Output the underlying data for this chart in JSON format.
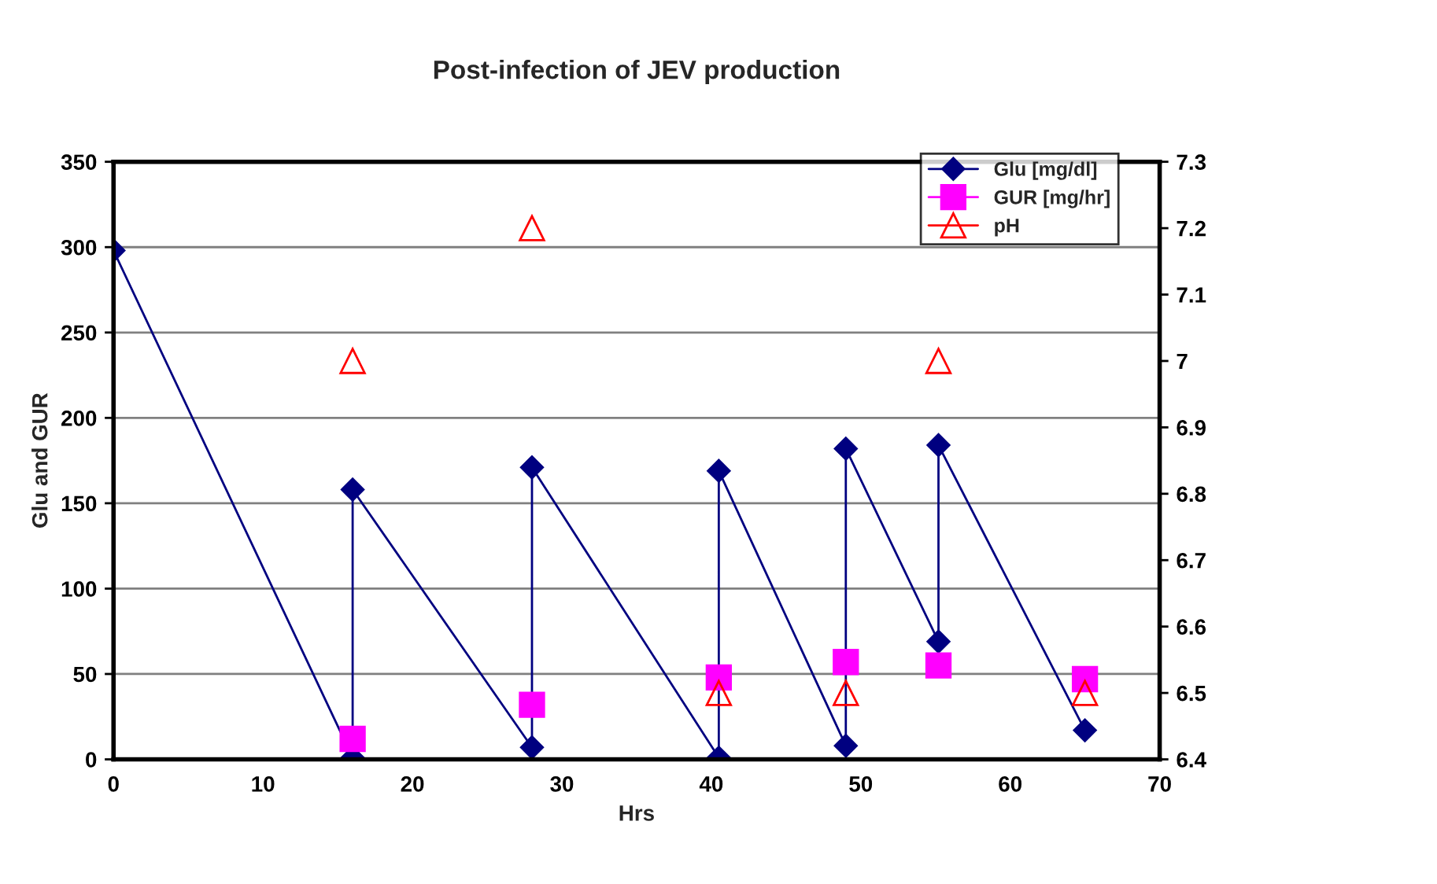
{
  "chart_data": {
    "type": "line",
    "title": "Post-infection of JEV production",
    "xlabel": "Hrs",
    "ylabel": "Glu and GUR",
    "xlim": [
      0,
      70
    ],
    "xticks": [
      0,
      10,
      20,
      30,
      40,
      50,
      60,
      70
    ],
    "ylim": [
      0,
      350
    ],
    "yticks": [
      0,
      50,
      100,
      150,
      200,
      250,
      300,
      350
    ],
    "y2lim": [
      6.4,
      7.3
    ],
    "y2ticks": [
      6.4,
      6.5,
      6.6,
      6.7,
      6.8,
      6.9,
      7,
      7.1,
      7.2,
      7.3
    ],
    "grid": "y",
    "legend": "top right",
    "series": [
      {
        "name": "Glu [mg/dl]",
        "color": "#000080",
        "marker": "diamond",
        "line_style": "solid",
        "x": [
          0,
          16,
          16,
          28,
          28,
          40.5,
          40.5,
          49,
          49,
          55.2,
          55.2,
          65
        ],
        "values": [
          298,
          1,
          158,
          7,
          171,
          1,
          169,
          8,
          182,
          69,
          184,
          17
        ]
      },
      {
        "name": "GUR [mg/hr]",
        "type": "scatter",
        "color": "#ff00ff",
        "marker": "square",
        "x": [
          16,
          28,
          40.5,
          49,
          55.2,
          65
        ],
        "values": [
          12,
          32,
          48,
          57,
          55,
          47
        ]
      },
      {
        "name": "pH",
        "type": "scatter",
        "color": "#ff0000",
        "marker": "triangle",
        "axis": "y2",
        "x": [
          16,
          28,
          40.5,
          49,
          55.2,
          65
        ],
        "values": [
          7.0,
          7.2,
          6.5,
          6.5,
          7.0,
          6.5
        ]
      }
    ]
  }
}
